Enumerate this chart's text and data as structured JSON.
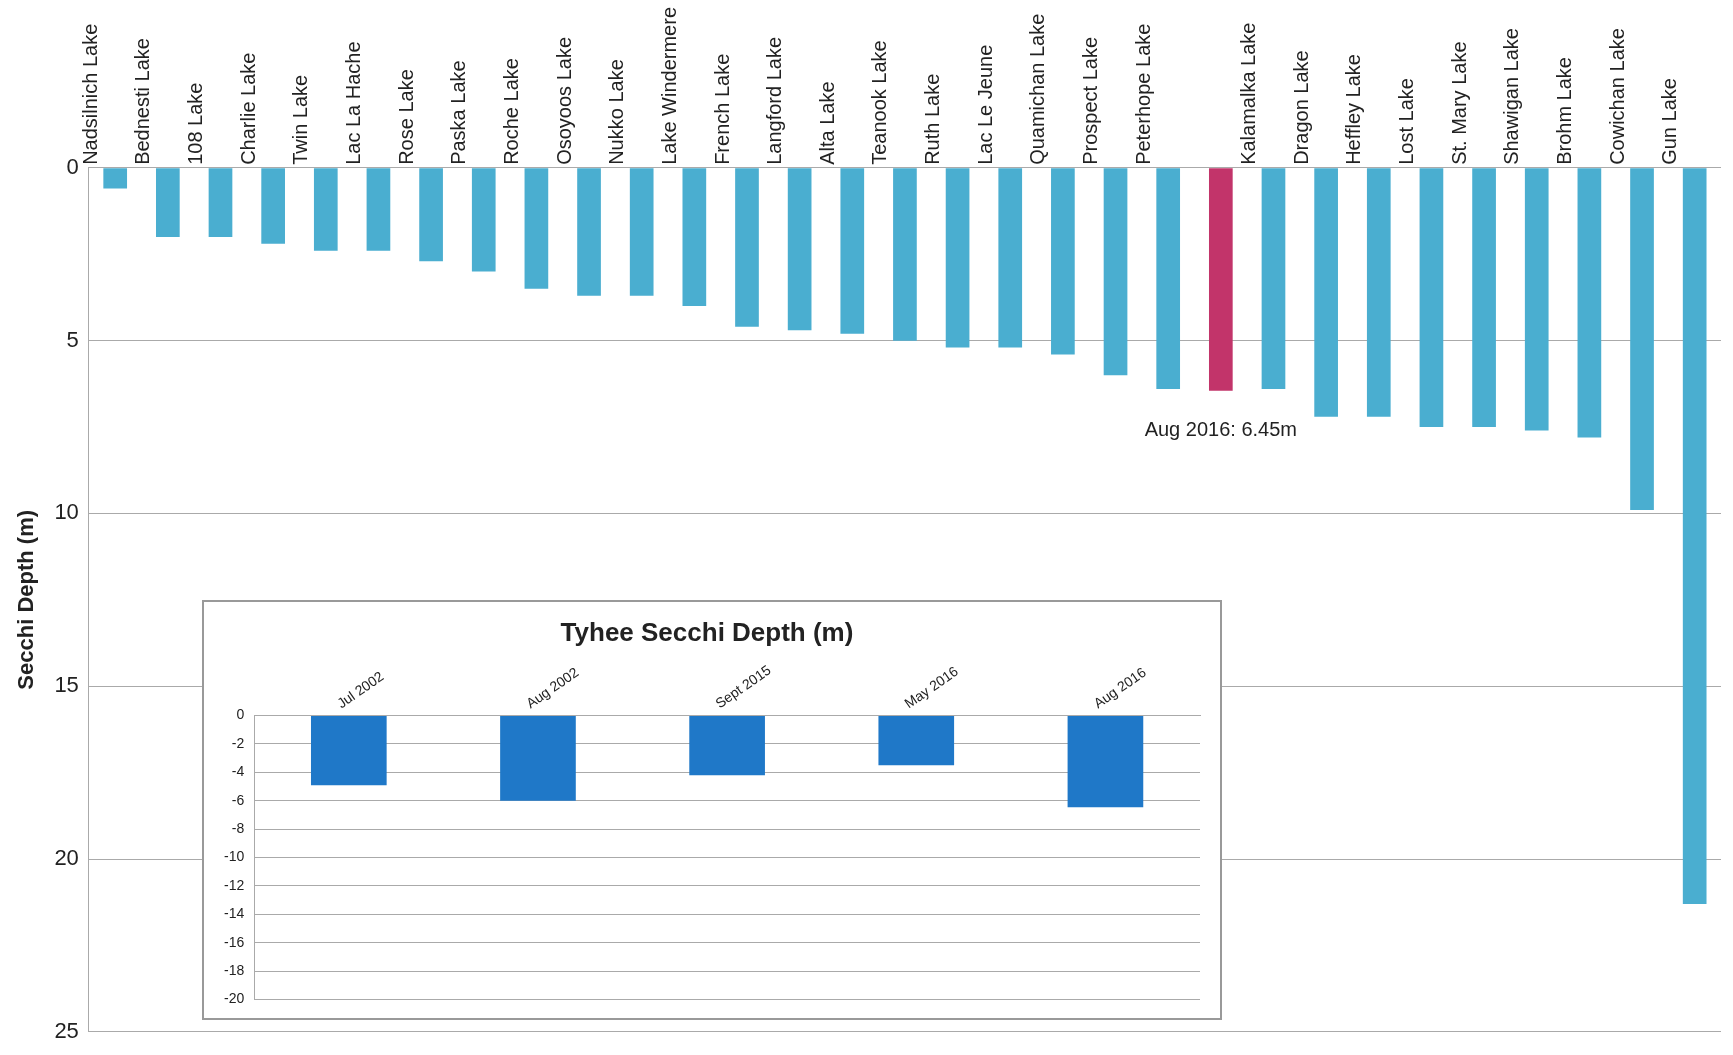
{
  "chart_data": [
    {
      "type": "bar",
      "ylabel": "Secchi Depth (m)",
      "categories": [
        "Nadsilnich Lake",
        "Bednesti Lake",
        "108 Lake",
        "Charlie Lake",
        "Twin Lake",
        "Lac La Hache",
        "Rose Lake",
        "Paska Lake",
        "Roche Lake",
        "Osoyoos Lake",
        "Nukko Lake",
        "Lake Windermere",
        "French Lake",
        "Langford Lake",
        "Alta Lake",
        "Teanook Lake",
        "Ruth Lake",
        "Lac Le Jeune",
        "Quamichan Lake",
        "Prospect Lake",
        "Peterhope Lake",
        null,
        "Kalamalka Lake",
        "Dragon Lake",
        "Heffley Lake",
        "Lost Lake",
        "St. Mary Lake",
        "Shawigan Lake",
        "Brohm Lake",
        "Cowichan Lake",
        "Gun Lake"
      ],
      "values": [
        0.6,
        2.0,
        2.0,
        2.2,
        2.4,
        2.4,
        2.7,
        3.0,
        3.5,
        3.7,
        3.7,
        4.0,
        4.6,
        4.7,
        4.8,
        5.0,
        5.2,
        5.2,
        5.4,
        6.0,
        6.4,
        6.45,
        6.4,
        7.2,
        7.2,
        7.5,
        7.5,
        7.6,
        7.8,
        9.9,
        21.3
      ],
      "colors": [
        "#4aaed0",
        "#4aaed0",
        "#4aaed0",
        "#4aaed0",
        "#4aaed0",
        "#4aaed0",
        "#4aaed0",
        "#4aaed0",
        "#4aaed0",
        "#4aaed0",
        "#4aaed0",
        "#4aaed0",
        "#4aaed0",
        "#4aaed0",
        "#4aaed0",
        "#4aaed0",
        "#4aaed0",
        "#4aaed0",
        "#4aaed0",
        "#4aaed0",
        "#4aaed0",
        "#c2346a",
        "#4aaed0",
        "#4aaed0",
        "#4aaed0",
        "#4aaed0",
        "#4aaed0",
        "#4aaed0",
        "#4aaed0",
        "#4aaed0",
        "#4aaed0"
      ],
      "ylim": [
        25,
        0
      ],
      "yticks": [
        0,
        5,
        10,
        15,
        20,
        25
      ],
      "grid": "y",
      "annotations": [
        {
          "text": "Aug 2016: 6.45m",
          "y": 6.45
        }
      ]
    },
    {
      "type": "bar",
      "title": "Tyhee Secchi Depth (m)",
      "categories": [
        "Jul 2002",
        "Aug 2002",
        "Sept 2015",
        "May 2016",
        "Aug 2016"
      ],
      "values": [
        -4.9,
        -6.0,
        -4.2,
        -3.5,
        -6.45
      ],
      "color": "#1f78c8",
      "ylim": [
        -20,
        0
      ],
      "yticks": [
        0,
        -2,
        -4,
        -6,
        -8,
        -10,
        -12,
        -14,
        -16,
        -18,
        -20
      ],
      "grid": "y"
    }
  ]
}
